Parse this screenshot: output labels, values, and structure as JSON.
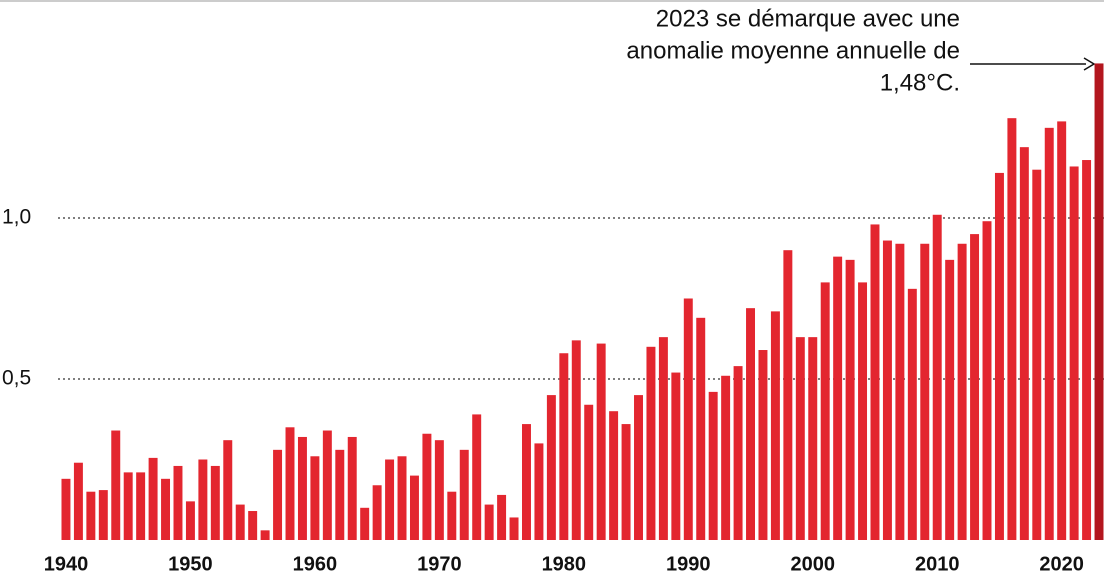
{
  "chart_data": {
    "type": "bar",
    "annotation": [
      "2023 se démarque avec une",
      "anomalie moyenne annuelle de",
      "1,48°C."
    ],
    "x": [
      1940,
      1941,
      1942,
      1943,
      1944,
      1945,
      1946,
      1947,
      1948,
      1949,
      1950,
      1951,
      1952,
      1953,
      1954,
      1955,
      1956,
      1957,
      1958,
      1959,
      1960,
      1961,
      1962,
      1963,
      1964,
      1965,
      1966,
      1967,
      1968,
      1969,
      1970,
      1971,
      1972,
      1973,
      1974,
      1975,
      1976,
      1977,
      1978,
      1979,
      1980,
      1981,
      1982,
      1983,
      1984,
      1985,
      1986,
      1987,
      1988,
      1989,
      1990,
      1991,
      1992,
      1993,
      1994,
      1995,
      1996,
      1997,
      1998,
      1999,
      2000,
      2001,
      2002,
      2003,
      2004,
      2005,
      2006,
      2007,
      2008,
      2009,
      2010,
      2011,
      2012,
      2013,
      2014,
      2015,
      2016,
      2017,
      2018,
      2019,
      2020,
      2021,
      2022,
      2023
    ],
    "values": [
      0.19,
      0.24,
      0.15,
      0.155,
      0.34,
      0.21,
      0.21,
      0.255,
      0.19,
      0.23,
      0.12,
      0.25,
      0.23,
      0.31,
      0.11,
      0.09,
      0.03,
      0.28,
      0.35,
      0.32,
      0.26,
      0.34,
      0.28,
      0.32,
      0.1,
      0.17,
      0.25,
      0.26,
      0.2,
      0.33,
      0.31,
      0.15,
      0.28,
      0.39,
      0.11,
      0.14,
      0.07,
      0.36,
      0.3,
      0.45,
      0.58,
      0.62,
      0.42,
      0.61,
      0.4,
      0.36,
      0.45,
      0.6,
      0.63,
      0.52,
      0.75,
      0.69,
      0.46,
      0.51,
      0.54,
      0.72,
      0.59,
      0.71,
      0.9,
      0.63,
      0.63,
      0.8,
      0.88,
      0.87,
      0.8,
      0.98,
      0.93,
      0.92,
      0.78,
      0.92,
      1.01,
      0.87,
      0.92,
      0.95,
      0.99,
      1.14,
      1.31,
      1.22,
      1.15,
      1.28,
      1.3,
      1.16,
      1.18,
      1.48
    ],
    "color": "#e3262f",
    "highlight_color": "#b3161e",
    "xlim": [
      1934.7,
      2023.4
    ],
    "xticks": [
      1940,
      1950,
      1960,
      1970,
      1980,
      1990,
      2000,
      2010,
      2020
    ],
    "ylim": [
      0,
      1.677
    ],
    "yticks": [
      {
        "value": 0.5,
        "label": "0,5"
      },
      {
        "value": 1,
        "label": "1,0"
      }
    ],
    "grid": true
  }
}
